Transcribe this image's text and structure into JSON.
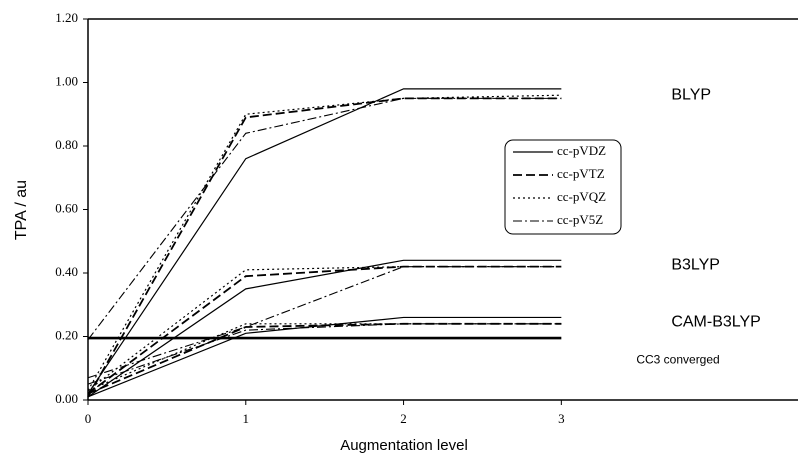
{
  "chart_data": {
    "type": "line",
    "x_label": "Augmentation level",
    "y_label": "TPA / au",
    "x": [
      0,
      1,
      2,
      3
    ],
    "xlim": [
      0,
      4.5
    ],
    "xticks": [
      0,
      1,
      2,
      3
    ],
    "ylim": [
      0,
      1.2
    ],
    "yticks": [
      {
        "value": 0,
        "label": "0.00"
      },
      {
        "value": 0.2,
        "label": "0.20"
      },
      {
        "value": 0.4,
        "label": "0.40"
      },
      {
        "value": 0.6,
        "label": "0.60"
      },
      {
        "value": 0.8,
        "label": "0.80"
      },
      {
        "value": 1.0,
        "label": "1.00"
      },
      {
        "value": 1.2,
        "label": "1.20"
      }
    ],
    "color": "#000000",
    "legend": [
      {
        "name": "cc-pVDZ",
        "dash": "solid"
      },
      {
        "name": "cc-pVTZ",
        "dash": "dashed"
      },
      {
        "name": "cc-pVQZ",
        "dash": "dotted"
      },
      {
        "name": "cc-pV5Z",
        "dash": "dashdot"
      }
    ],
    "groups": [
      {
        "label": "BLYP",
        "series": [
          {
            "values": [
              0.02,
              0.76,
              0.98,
              0.98
            ]
          },
          {
            "values": [
              0.01,
              0.89,
              0.95,
              0.95
            ]
          },
          {
            "values": [
              0.03,
              0.9,
              0.95,
              0.96
            ]
          },
          {
            "values": [
              0.19,
              0.84,
              0.95,
              0.95
            ]
          }
        ]
      },
      {
        "label": "B3LYP",
        "series": [
          {
            "values": [
              0.01,
              0.35,
              0.44,
              0.44
            ]
          },
          {
            "values": [
              0.02,
              0.39,
              0.42,
              0.42
            ]
          },
          {
            "values": [
              0.03,
              0.41,
              0.42,
              0.42
            ]
          },
          {
            "values": [
              0.07,
              0.23,
              0.42,
              0.42
            ]
          }
        ]
      },
      {
        "label": "CAM-B3LYP",
        "series": [
          {
            "values": [
              0.01,
              0.21,
              0.26,
              0.26
            ]
          },
          {
            "values": [
              0.02,
              0.23,
              0.24,
              0.24
            ]
          },
          {
            "values": [
              0.03,
              0.24,
              0.24,
              0.24
            ]
          },
          {
            "values": [
              0.05,
              0.22,
              0.24,
              0.24
            ]
          }
        ]
      }
    ],
    "reference": {
      "label": "CC3 converged",
      "values": [
        0.195,
        0.195,
        0.195,
        0.195
      ]
    }
  }
}
